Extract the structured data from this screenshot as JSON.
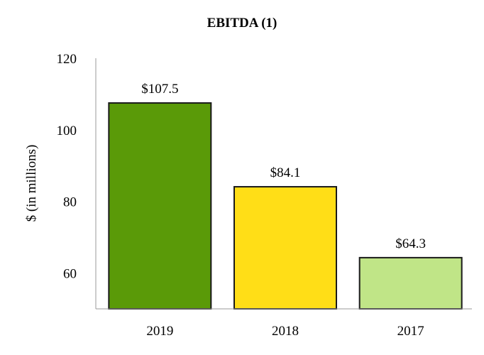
{
  "chart_data": {
    "type": "bar",
    "title": "EBITDA (1)",
    "xlabel": "",
    "ylabel": "$ (in millions)",
    "categories": [
      "2019",
      "2018",
      "2017"
    ],
    "values": [
      107.5,
      84.1,
      64.3
    ],
    "data_labels": [
      "$107.5",
      "$84.1",
      "$64.3"
    ],
    "bar_colors": [
      "#5a9a08",
      "#ffde17",
      "#c0e587"
    ],
    "bar_stroke": "#1a1a1a",
    "ylim": [
      50,
      120
    ],
    "yticks": [
      60,
      80,
      100,
      120
    ],
    "ytick_labels": [
      "60",
      "80",
      "100",
      "120"
    ],
    "grid": false,
    "legend": "none"
  }
}
